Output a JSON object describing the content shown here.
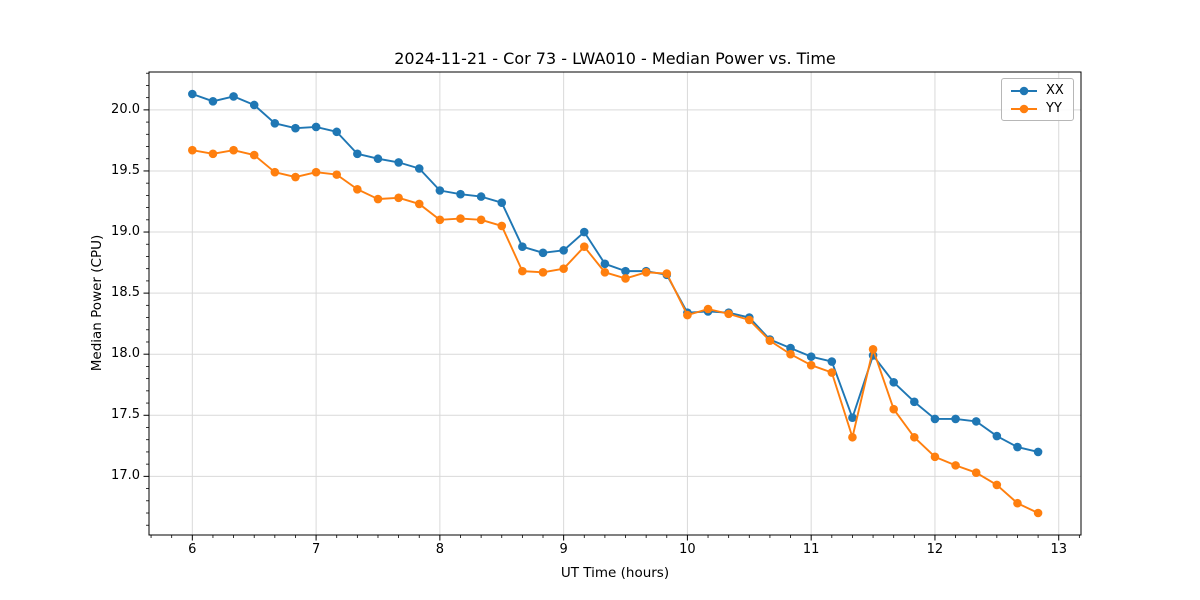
{
  "chart_data": {
    "type": "line",
    "title": "2024-11-21 - Cor 73 - LWA010 - Median Power vs. Time",
    "xlabel": "UT Time (hours)",
    "ylabel": "Median Power (CPU)",
    "grid": true,
    "legend_position": "upper right",
    "xlim": [
      5.65,
      13.18
    ],
    "ylim": [
      16.52,
      20.31
    ],
    "xticks": {
      "values": [
        6,
        7,
        8,
        9,
        10,
        11,
        12,
        13
      ],
      "labels": [
        "6",
        "7",
        "8",
        "9",
        "10",
        "11",
        "12",
        "13"
      ]
    },
    "yticks": {
      "values": [
        17.0,
        17.5,
        18.0,
        18.5,
        19.0,
        19.5,
        20.0
      ],
      "labels": [
        "17.0",
        "17.5",
        "18.0",
        "18.5",
        "19.0",
        "19.5",
        "20.0"
      ]
    },
    "x_minor_step": 0.166667,
    "y_minor_step": 0.1,
    "grid_color": "#d9d9d9",
    "x": [
      6,
      6.1667,
      6.3333,
      6.5,
      6.6667,
      6.8333,
      7,
      7.1667,
      7.3333,
      7.5,
      7.6667,
      7.8333,
      8,
      8.1667,
      8.3333,
      8.5,
      8.6667,
      8.8333,
      9,
      9.1667,
      9.3333,
      9.5,
      9.6667,
      9.8333,
      10,
      10.1667,
      10.3333,
      10.5,
      10.6667,
      10.8333,
      11,
      11.1667,
      11.3333,
      11.5,
      11.6667,
      11.8333,
      12,
      12.1667,
      12.3333,
      12.5,
      12.6667,
      12.8333
    ],
    "series": [
      {
        "name": "XX",
        "color": "#1f77b4",
        "values": [
          20.13,
          20.07,
          20.11,
          20.04,
          19.89,
          19.85,
          19.86,
          19.82,
          19.64,
          19.6,
          19.57,
          19.52,
          19.34,
          19.31,
          19.29,
          19.24,
          18.88,
          18.83,
          18.85,
          19.0,
          18.74,
          18.68,
          18.68,
          18.65,
          18.34,
          18.35,
          18.34,
          18.3,
          18.12,
          18.05,
          17.98,
          17.94,
          17.48,
          17.99,
          17.77,
          17.61,
          17.47,
          17.47,
          17.45,
          17.33,
          17.24,
          17.2
        ]
      },
      {
        "name": "YY",
        "color": "#ff7f0e",
        "values": [
          19.67,
          19.64,
          19.67,
          19.63,
          19.49,
          19.45,
          19.49,
          19.47,
          19.35,
          19.27,
          19.28,
          19.23,
          19.1,
          19.11,
          19.1,
          19.05,
          18.68,
          18.67,
          18.7,
          18.88,
          18.67,
          18.62,
          18.67,
          18.66,
          18.32,
          18.37,
          18.33,
          18.28,
          18.11,
          18.0,
          17.91,
          17.85,
          17.32,
          18.04,
          17.55,
          17.32,
          17.16,
          17.09,
          17.03,
          16.93,
          16.78,
          16.7
        ]
      }
    ]
  }
}
